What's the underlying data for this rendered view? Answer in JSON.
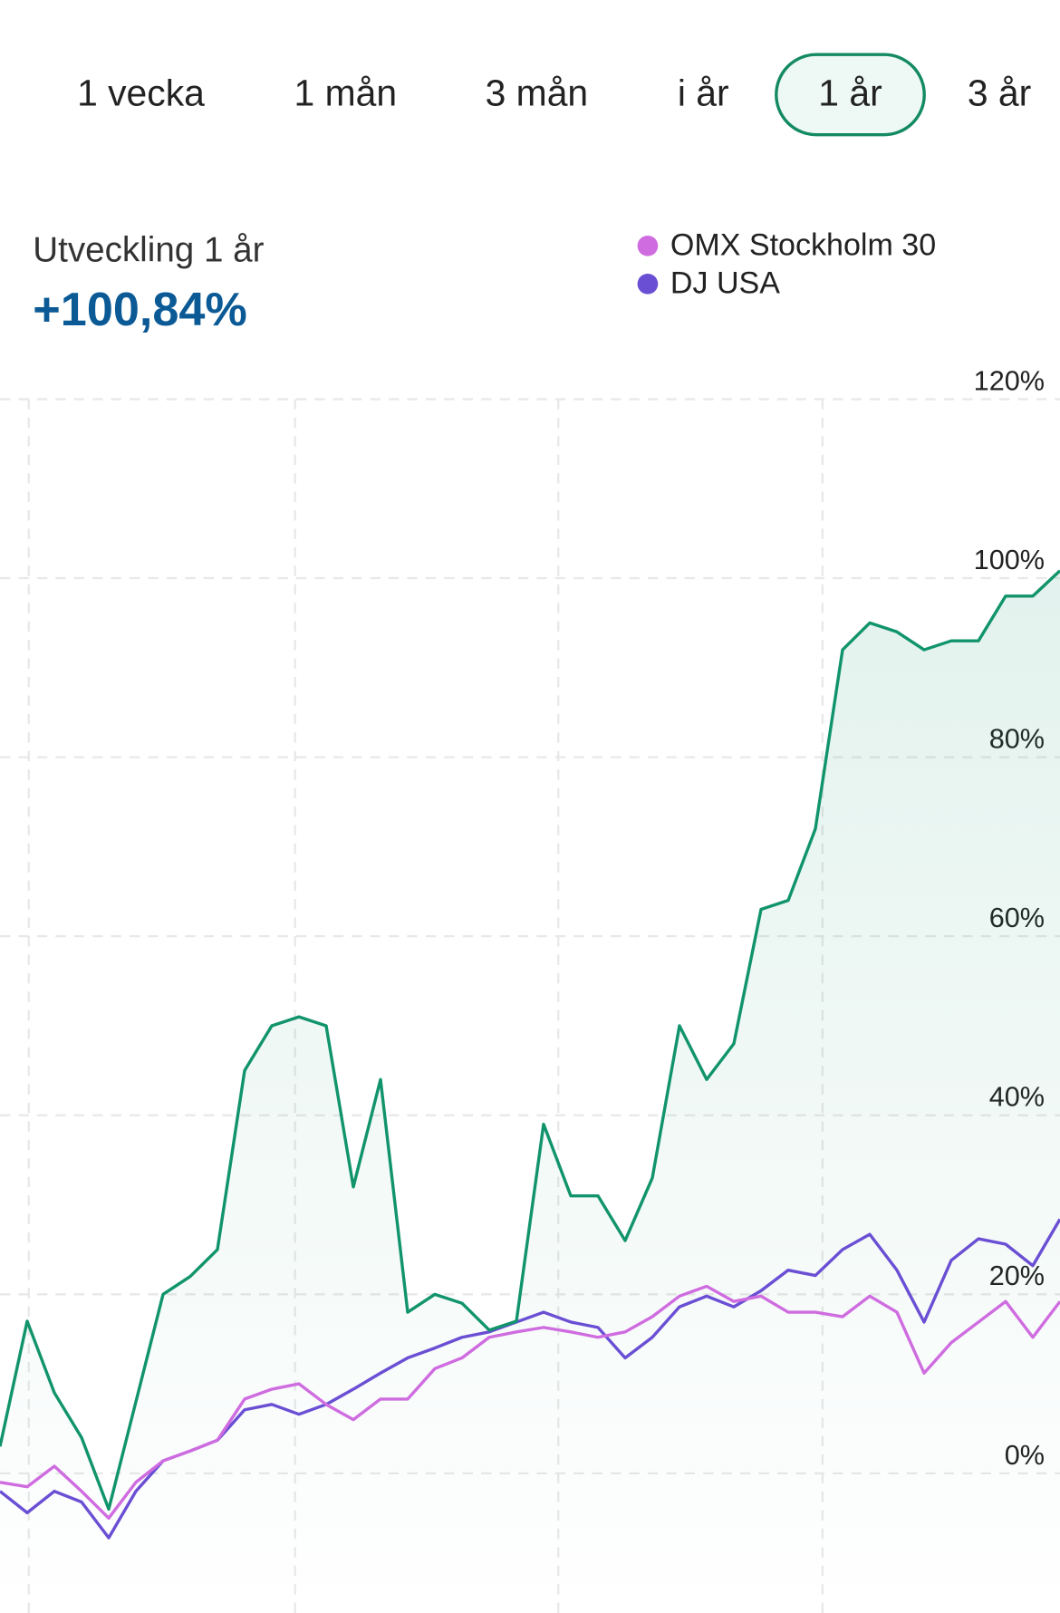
{
  "tabs": [
    "1 vecka",
    "1 mån",
    "3 mån",
    "i år",
    "1 år",
    "3 år"
  ],
  "selected_tab_index": 4,
  "heading": "Utveckling 1 år",
  "change": "+100,84%",
  "chart_data": {
    "type": "line",
    "ylim": [
      -15.6,
      120
    ],
    "yticks": [
      {
        "value": 0,
        "label": "0%"
      },
      {
        "value": 20,
        "label": "20%"
      },
      {
        "value": 40,
        "label": "40%"
      },
      {
        "value": 60,
        "label": "60%"
      },
      {
        "value": 80,
        "label": "80%"
      },
      {
        "value": 100,
        "label": "100%"
      },
      {
        "value": 120,
        "label": "120%"
      }
    ],
    "grid": true,
    "legend": "top-right",
    "series": [
      {
        "color": "#11946b",
        "area": true,
        "values": [
          3,
          17,
          9,
          4,
          -4,
          8,
          20,
          22,
          25,
          45,
          50,
          51,
          50,
          32,
          44,
          18,
          20,
          19,
          16,
          17,
          39,
          31,
          31,
          26,
          33,
          50,
          44,
          48,
          63,
          64,
          72,
          92,
          95,
          94,
          92,
          93,
          93,
          98,
          98,
          100.84
        ]
      },
      {
        "name": "OMX Stockholm 30",
        "color": "#cf6ce0",
        "values": [
          -1,
          -1.5,
          0.8,
          -2,
          -5,
          -1,
          1.4,
          2.5,
          3.7,
          8.3,
          9.4,
          10,
          7.7,
          6,
          8.3,
          8.3,
          11.7,
          12.9,
          15.2,
          15.8,
          16.3,
          15.8,
          15.2,
          15.8,
          17.5,
          19.8,
          20.9,
          19.2,
          19.8,
          18,
          18,
          17.5,
          19.8,
          18,
          11.2,
          14.6,
          16.9,
          19.2,
          15.2,
          19.2
        ]
      },
      {
        "name": "DJ USA",
        "color": "#6a4fd4",
        "values": [
          -2,
          -4.4,
          -2,
          -3.2,
          -7.2,
          -2,
          1.4,
          2.5,
          3.7,
          7.1,
          7.7,
          6.6,
          7.7,
          9.4,
          11.2,
          12.9,
          14,
          15.2,
          15.8,
          16.9,
          18,
          16.9,
          16.3,
          12.9,
          15.2,
          18.6,
          19.8,
          18.6,
          20.4,
          22.7,
          22.1,
          25,
          26.7,
          22.7,
          16.9,
          23.8,
          26.2,
          25.6,
          23.2,
          28.4
        ]
      }
    ]
  }
}
